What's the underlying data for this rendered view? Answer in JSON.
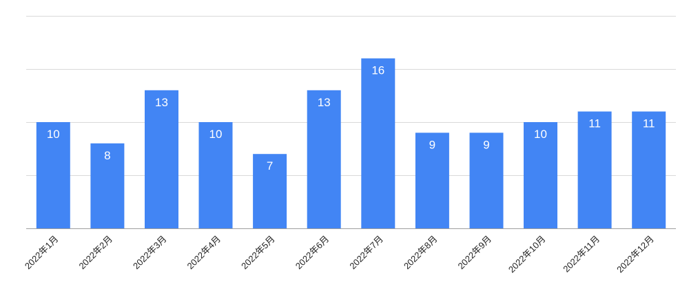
{
  "chart_data": {
    "type": "bar",
    "categories": [
      "2022年1月",
      "2022年2月",
      "2022年3月",
      "2022年4月",
      "2022年5月",
      "2022年6月",
      "2022年7月",
      "2022年8月",
      "2022年9月",
      "2022年10月",
      "2022年11月",
      "2022年12月"
    ],
    "values": [
      10,
      8,
      13,
      10,
      7,
      13,
      16,
      9,
      9,
      10,
      11,
      11
    ],
    "title": "",
    "xlabel": "",
    "ylabel": "",
    "ylim": [
      0,
      20
    ],
    "gridlines": [
      0,
      5,
      10,
      15,
      20
    ],
    "grid": true,
    "legend": "none",
    "data_labels": true,
    "bar_color": "#4285f4"
  }
}
